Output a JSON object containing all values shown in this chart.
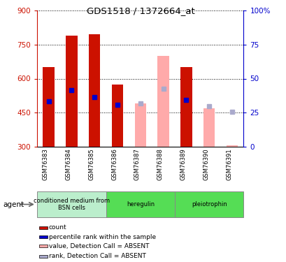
{
  "title": "GDS1518 / 1372664_at",
  "samples": [
    "GSM76383",
    "GSM76384",
    "GSM76385",
    "GSM76386",
    "GSM76387",
    "GSM76388",
    "GSM76389",
    "GSM76390",
    "GSM76391"
  ],
  "ylim_left": [
    300,
    900
  ],
  "ylim_right": [
    0,
    100
  ],
  "yticks_left": [
    300,
    450,
    600,
    750,
    900
  ],
  "yticks_right": [
    0,
    25,
    50,
    75,
    100
  ],
  "bar_baseline": 300,
  "count_values": [
    650,
    790,
    795,
    575,
    null,
    null,
    650,
    null,
    null
  ],
  "rank_values": [
    500,
    550,
    520,
    485,
    null,
    null,
    505,
    null,
    null
  ],
  "absent_value": [
    null,
    null,
    null,
    null,
    490,
    700,
    null,
    470,
    305
  ],
  "absent_rank": [
    null,
    null,
    null,
    null,
    490,
    555,
    null,
    480,
    455
  ],
  "count_color": "#cc1100",
  "rank_color": "#0000cc",
  "absent_value_color": "#ffaaaa",
  "absent_rank_color": "#aaaacc",
  "bar_width": 0.5,
  "left_label_color": "#cc1100",
  "right_label_color": "#0000cc",
  "group_boundaries": [
    {
      "start": 0,
      "end": 3,
      "label": "conditioned medium from\nBSN cells",
      "color": "#bbeecc"
    },
    {
      "start": 3,
      "end": 6,
      "label": "heregulin",
      "color": "#55dd55"
    },
    {
      "start": 6,
      "end": 9,
      "label": "pleiotrophin",
      "color": "#55dd55"
    }
  ],
  "legend_items": [
    {
      "color": "#cc1100",
      "label": "count"
    },
    {
      "color": "#0000cc",
      "label": "percentile rank within the sample"
    },
    {
      "color": "#ffaaaa",
      "label": "value, Detection Call = ABSENT"
    },
    {
      "color": "#aaaacc",
      "label": "rank, Detection Call = ABSENT"
    }
  ]
}
